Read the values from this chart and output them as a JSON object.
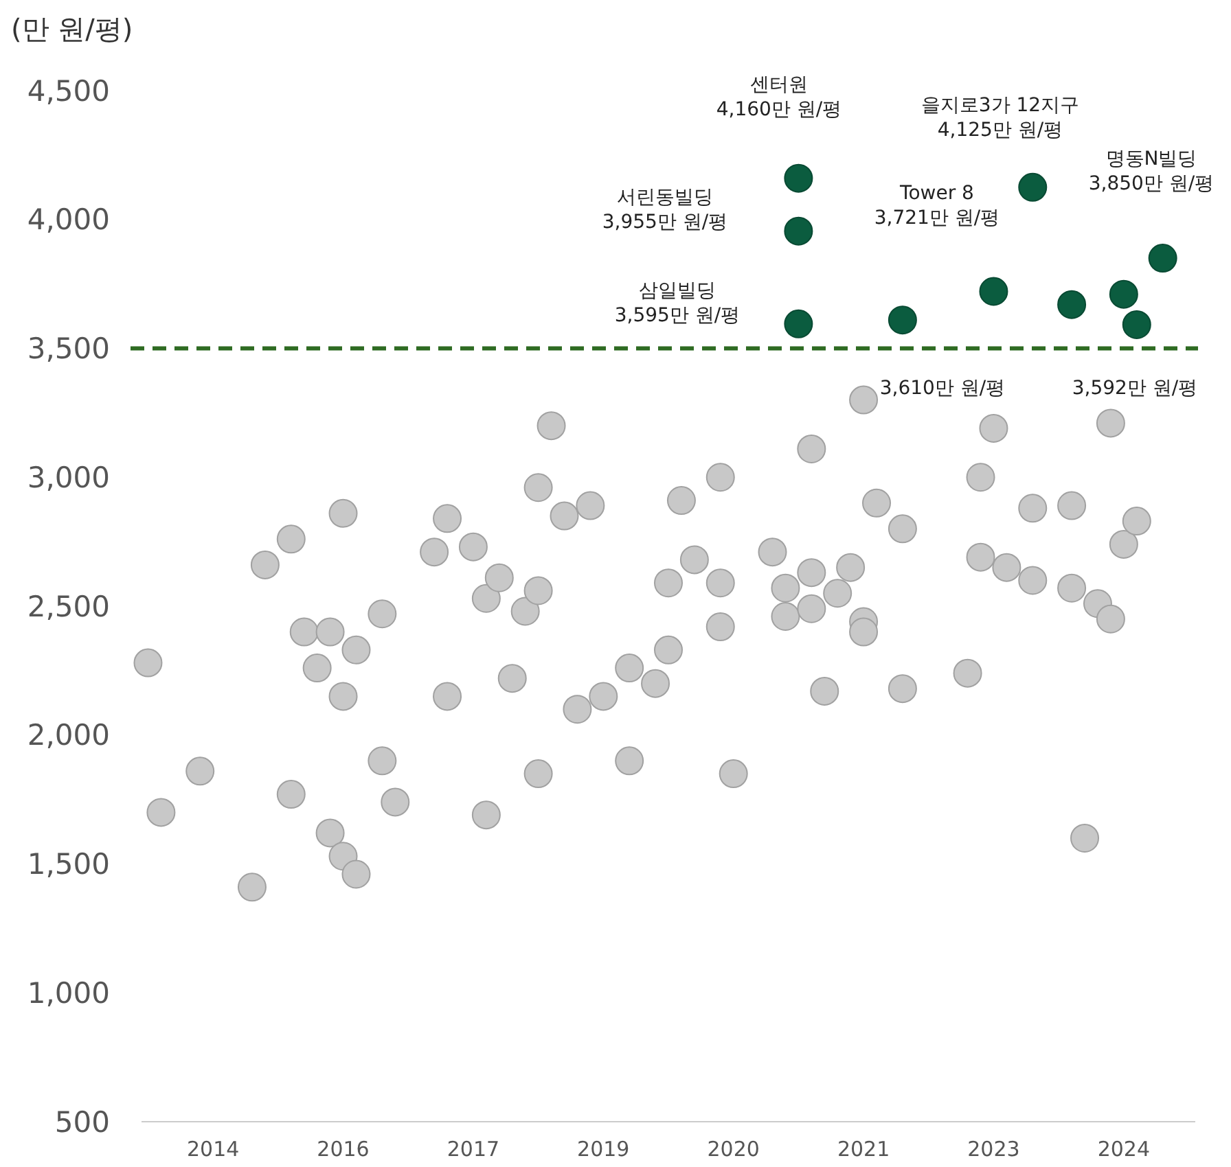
{
  "chart_data": {
    "type": "scatter",
    "ylabel": "(만 원/평)",
    "categories": [
      null,
      null,
      null,
      null,
      null,
      "2014",
      null,
      null,
      null,
      null,
      null,
      null,
      null,
      null,
      null,
      "2016",
      null,
      null,
      null,
      null,
      null,
      null,
      null,
      null,
      null,
      "2017",
      null,
      null,
      null,
      null,
      null,
      null,
      null,
      null,
      null,
      "2019",
      null,
      null,
      null,
      null,
      null,
      null,
      null,
      null,
      null,
      "2020",
      null,
      null,
      null,
      null,
      null,
      null,
      null,
      null,
      null,
      "2021",
      null,
      null,
      null,
      null,
      null,
      null,
      null,
      null,
      null,
      "2023",
      null,
      null,
      null,
      null,
      null,
      null,
      null,
      null,
      null,
      "2024",
      null,
      null,
      null,
      null,
      null
    ],
    "ylim": [
      500,
      4500
    ],
    "yticks": [
      {
        "value": 500,
        "label": "500"
      },
      {
        "value": 1000,
        "label": "1,000"
      },
      {
        "value": 1500,
        "label": "1,500"
      },
      {
        "value": 2000,
        "label": "2,000"
      },
      {
        "value": 2500,
        "label": "2,500"
      },
      {
        "value": 3000,
        "label": "3,000"
      },
      {
        "value": 3500,
        "label": "3,500"
      },
      {
        "value": 4000,
        "label": "4,000"
      },
      {
        "value": 4500,
        "label": "4,500"
      }
    ],
    "marker": "circle",
    "series": [
      {
        "color": "#c8c8c8",
        "values": [
          2280,
          1700,
          null,
          null,
          1860,
          null,
          null,
          null,
          1410,
          2660,
          null,
          2760,
          2400,
          2260,
          2400,
          2860,
          2330,
          null,
          1900,
          1740,
          null,
          null,
          2710,
          2840,
          null,
          2730,
          2530,
          2610,
          2220,
          2480,
          1850,
          3200,
          2850,
          2100,
          2890,
          2150,
          null,
          2260,
          null,
          2200,
          2590,
          2910,
          2680,
          null,
          3000,
          1850,
          null,
          null,
          2710,
          2570,
          null,
          2630,
          2170,
          2550,
          2650,
          3300,
          2900,
          null,
          2180,
          null,
          null,
          null,
          null,
          2240,
          3000,
          3190,
          2650,
          null,
          2880,
          null,
          null,
          2890,
          1600,
          2510,
          3210,
          2740,
          2830,
          null,
          null,
          null,
          null
        ]
      },
      {
        "color": "#c8c8c8",
        "values": [
          null,
          null,
          null,
          null,
          null,
          null,
          null,
          null,
          null,
          null,
          null,
          1770,
          null,
          null,
          1620,
          1530,
          1460,
          null,
          2470,
          null,
          null,
          null,
          null,
          2150,
          null,
          null,
          1690,
          null,
          null,
          null,
          2560,
          null,
          null,
          null,
          null,
          null,
          null,
          1900,
          null,
          null,
          2330,
          null,
          null,
          null,
          2590,
          null,
          null,
          null,
          null,
          2460,
          null,
          2490,
          null,
          null,
          null,
          2440,
          null,
          null,
          2800,
          null,
          null,
          null,
          null,
          null,
          2690,
          null,
          null,
          null,
          2600,
          null,
          null,
          2570,
          null,
          null,
          2450,
          null,
          null,
          null,
          null,
          null,
          null
        ]
      },
      {
        "color": "#c8c8c8",
        "values": [
          null,
          null,
          null,
          null,
          null,
          null,
          null,
          null,
          null,
          null,
          null,
          null,
          null,
          null,
          null,
          2150,
          null,
          null,
          null,
          null,
          null,
          null,
          null,
          null,
          null,
          null,
          null,
          null,
          null,
          null,
          2960,
          null,
          null,
          null,
          null,
          null,
          null,
          null,
          null,
          null,
          null,
          null,
          null,
          null,
          2420,
          null,
          null,
          null,
          null,
          null,
          null,
          3110,
          null,
          null,
          null,
          2400,
          null,
          null,
          null,
          null,
          null,
          null,
          null,
          null,
          null,
          null,
          null,
          null,
          null,
          null,
          null,
          null,
          null,
          null,
          null,
          null,
          null,
          null,
          null,
          null,
          null
        ]
      },
      {
        "color": "#0b5c3f",
        "values": [
          null,
          null,
          null,
          null,
          null,
          null,
          null,
          null,
          null,
          null,
          null,
          null,
          null,
          null,
          null,
          null,
          null,
          null,
          null,
          null,
          null,
          null,
          null,
          null,
          null,
          null,
          null,
          null,
          null,
          null,
          null,
          null,
          null,
          null,
          null,
          null,
          null,
          null,
          null,
          null,
          null,
          null,
          null,
          null,
          null,
          null,
          null,
          null,
          null,
          null,
          4160,
          null,
          null,
          null,
          null,
          null,
          null,
          null,
          3610,
          null,
          null,
          null,
          null,
          null,
          null,
          3721,
          null,
          null,
          4125,
          null,
          null,
          3670,
          null,
          null,
          null,
          3710,
          3592,
          null,
          3850,
          null,
          null
        ]
      },
      {
        "color": "#0b5c3f",
        "values": [
          null,
          null,
          null,
          null,
          null,
          null,
          null,
          null,
          null,
          null,
          null,
          null,
          null,
          null,
          null,
          null,
          null,
          null,
          null,
          null,
          null,
          null,
          null,
          null,
          null,
          null,
          null,
          null,
          null,
          null,
          null,
          null,
          null,
          null,
          null,
          null,
          null,
          null,
          null,
          null,
          null,
          null,
          null,
          null,
          null,
          null,
          null,
          null,
          null,
          null,
          3955,
          null,
          null,
          null,
          null,
          null,
          null,
          null,
          null,
          null,
          null,
          null,
          null,
          null,
          null,
          null,
          null,
          null,
          null,
          null,
          null,
          null,
          null,
          null,
          null,
          null,
          null,
          null,
          null,
          null,
          null
        ]
      },
      {
        "color": "#0b5c3f",
        "values": [
          null,
          null,
          null,
          null,
          null,
          null,
          null,
          null,
          null,
          null,
          null,
          null,
          null,
          null,
          null,
          null,
          null,
          null,
          null,
          null,
          null,
          null,
          null,
          null,
          null,
          null,
          null,
          null,
          null,
          null,
          null,
          null,
          null,
          null,
          null,
          null,
          null,
          null,
          null,
          null,
          null,
          null,
          null,
          null,
          null,
          null,
          null,
          null,
          null,
          null,
          3595,
          null,
          null,
          null,
          null,
          null,
          null,
          null,
          null,
          null,
          null,
          null,
          null,
          null,
          null,
          null,
          null,
          null,
          null,
          null,
          null,
          null,
          null,
          null,
          null,
          null,
          null,
          null,
          null,
          null,
          null
        ]
      }
    ],
    "ref_lines": [
      {
        "axis": "y",
        "value": 3500,
        "color": "#2e6b22",
        "line_style": "dashed"
      }
    ],
    "annotations": [
      "센터원\n4,160만 원/평",
      "을지로3가 12지구\n4,125만 원/평",
      "서린동빌딩\n3,955만 원/평",
      "명동N빌딩\n3,850만 원/평",
      "Tower 8\n3,721만 원/평",
      "삼일빌딩\n3,595만 원/평",
      "3,610만 원/평",
      "3,592만 원/평"
    ]
  }
}
